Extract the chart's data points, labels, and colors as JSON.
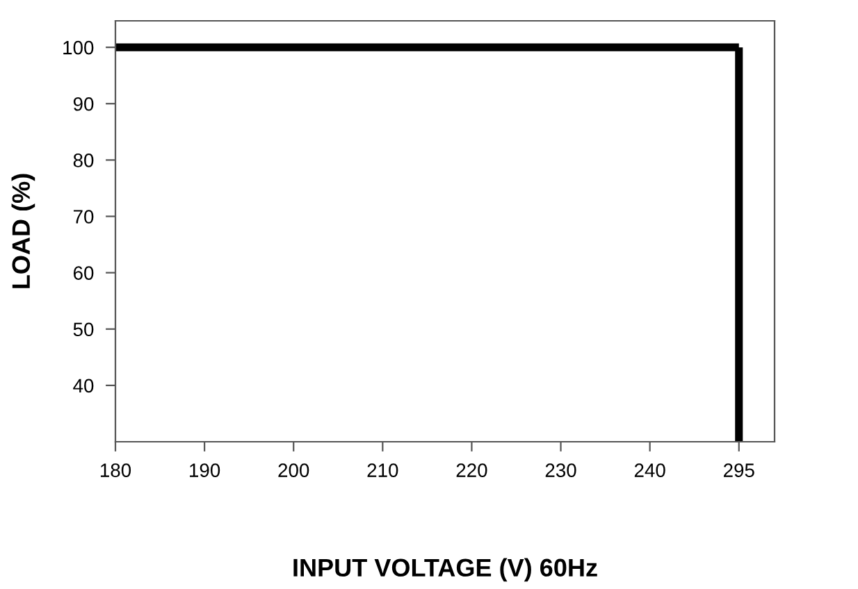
{
  "chart_data": {
    "type": "line",
    "xlabel": "INPUT VOLTAGE (V) 60Hz",
    "ylabel": "LOAD (%)",
    "categories": [
      "180",
      "190",
      "200",
      "210",
      "220",
      "230",
      "240",
      "295"
    ],
    "series": [
      {
        "color": "#000000",
        "values": [
          100,
          100,
          100,
          100,
          100,
          100,
          100,
          100
        ]
      },
      {
        "color": "#000000",
        "x": [
          "295",
          "295"
        ],
        "values": [
          100,
          30
        ]
      }
    ],
    "ylim": [
      30,
      104.7
    ],
    "yticks": [
      40,
      50,
      60,
      70,
      80,
      90,
      100
    ],
    "grid": false,
    "marker": "none",
    "line_style": "solid"
  }
}
